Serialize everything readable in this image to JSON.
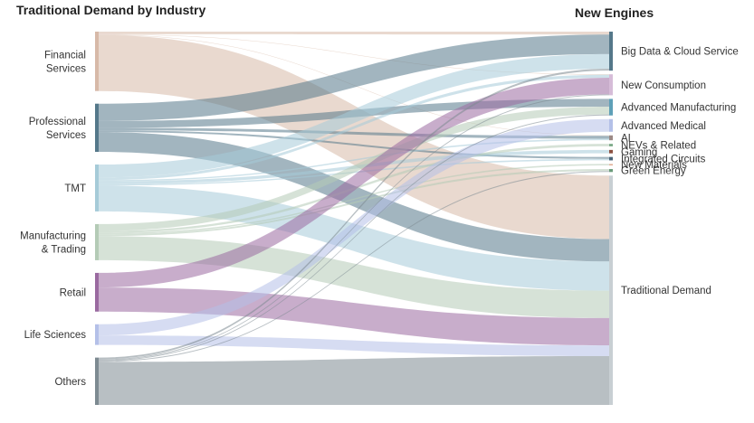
{
  "chart_data": {
    "type": "sankey",
    "title": "",
    "left_header": "Traditional Demand by Industry",
    "right_header": "New Engines",
    "sources": [
      {
        "label": "Financial\nServices",
        "color": "#d7b9a8"
      },
      {
        "label": "Professional\nServices",
        "color": "#55788a"
      },
      {
        "label": "TMT",
        "color": "#a6cbd8"
      },
      {
        "label": "Manufacturing\n& Trading",
        "color": "#b4cbb6"
      },
      {
        "label": "Retail",
        "color": "#9a6aa0"
      },
      {
        "label": "Life Sciences",
        "color": "#b4c0e8"
      },
      {
        "label": "Others",
        "color": "#7d8a91"
      }
    ],
    "targets": [
      {
        "label": "Big Data & Cloud Service",
        "color": "#55788a"
      },
      {
        "label": "New Consumption",
        "color": "#d6bcd8"
      },
      {
        "label": "Advanced Manufacturing",
        "color": "#5ea0b8"
      },
      {
        "label": "Advanced Medical",
        "color": "#b4c0e8"
      },
      {
        "label": "AI",
        "color": "#9c8a86"
      },
      {
        "label": "NEVs & Related",
        "color": "#7aa886"
      },
      {
        "label": "Gaming",
        "color": "#8b5040"
      },
      {
        "label": "Integrated Circuits",
        "color": "#4a6478"
      },
      {
        "label": "New Materials",
        "color": "#e0b098"
      },
      {
        "label": "Green Energy",
        "color": "#6a9a7a"
      },
      {
        "label": "Traditional Demand",
        "color": "#c8cfd3"
      }
    ],
    "flows": [
      {
        "source": 0,
        "target": 0,
        "value": 3
      },
      {
        "source": 0,
        "target": 1,
        "value": 0.5
      },
      {
        "source": 0,
        "target": 4,
        "value": 0.5
      },
      {
        "source": 0,
        "target": 10,
        "value": 65
      },
      {
        "source": 1,
        "target": 0,
        "value": 20
      },
      {
        "source": 1,
        "target": 2,
        "value": 8
      },
      {
        "source": 1,
        "target": 4,
        "value": 3
      },
      {
        "source": 1,
        "target": 7,
        "value": 2
      },
      {
        "source": 1,
        "target": 10,
        "value": 23
      },
      {
        "source": 2,
        "target": 0,
        "value": 15
      },
      {
        "source": 2,
        "target": 1,
        "value": 3
      },
      {
        "source": 2,
        "target": 4,
        "value": 1.5
      },
      {
        "source": 2,
        "target": 6,
        "value": 3.5
      },
      {
        "source": 2,
        "target": 7,
        "value": 1.5
      },
      {
        "source": 2,
        "target": 10,
        "value": 30
      },
      {
        "source": 3,
        "target": 2,
        "value": 8
      },
      {
        "source": 3,
        "target": 5,
        "value": 2.5
      },
      {
        "source": 3,
        "target": 8,
        "value": 1.5
      },
      {
        "source": 3,
        "target": 9,
        "value": 2
      },
      {
        "source": 3,
        "target": 10,
        "value": 28
      },
      {
        "source": 4,
        "target": 1,
        "value": 17
      },
      {
        "source": 4,
        "target": 10,
        "value": 28
      },
      {
        "source": 5,
        "target": 3,
        "value": 13
      },
      {
        "source": 5,
        "target": 10,
        "value": 11
      },
      {
        "source": 6,
        "target": 0,
        "value": 2
      },
      {
        "source": 6,
        "target": 1,
        "value": 1
      },
      {
        "source": 6,
        "target": 2,
        "value": 1
      },
      {
        "source": 6,
        "target": 9,
        "value": 1
      },
      {
        "source": 6,
        "target": 10,
        "value": 50
      }
    ]
  }
}
